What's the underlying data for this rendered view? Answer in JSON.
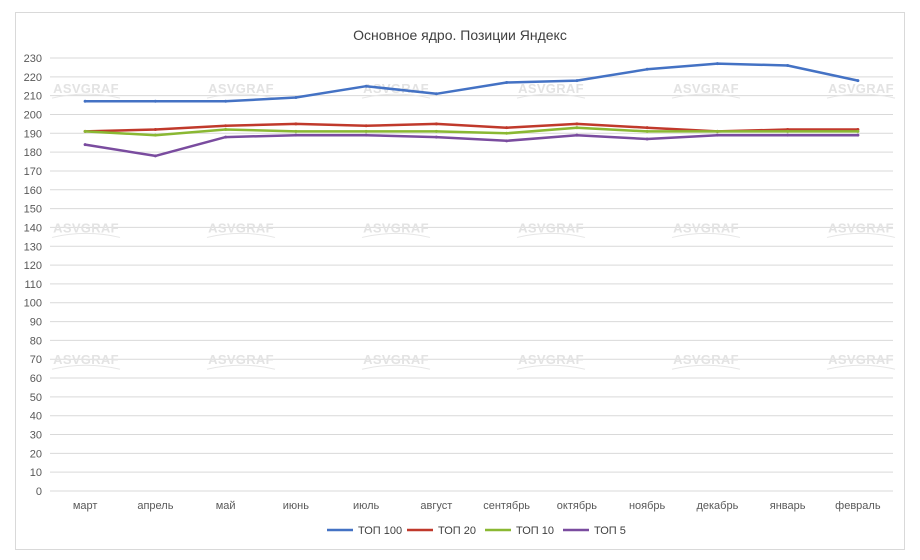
{
  "chart_data": {
    "type": "line",
    "title": "Основное ядро. Позиции Яндекс",
    "xlabel": "",
    "ylabel": "",
    "ylim": [
      0,
      230
    ],
    "y_step": 10,
    "grid": true,
    "legend_position": "bottom",
    "categories": [
      "март",
      "апрель",
      "май",
      "июнь",
      "июль",
      "август",
      "сентябрь",
      "октябрь",
      "ноябрь",
      "декабрь",
      "январь",
      "февраль"
    ],
    "series": [
      {
        "name": "ТОП 100",
        "color": "#4472c4",
        "values": [
          207,
          207,
          207,
          209,
          215,
          211,
          217,
          218,
          224,
          227,
          226,
          218
        ]
      },
      {
        "name": "ТОП 20",
        "color": "#c0392b",
        "values": [
          191,
          192,
          194,
          195,
          194,
          195,
          193,
          195,
          193,
          191,
          192,
          192
        ]
      },
      {
        "name": "ТОП 10",
        "color": "#8ab833",
        "values": [
          191,
          189,
          192,
          191,
          191,
          191,
          190,
          193,
          191,
          191,
          191,
          191
        ]
      },
      {
        "name": "ТОП 5",
        "color": "#7a4c9f",
        "values": [
          184,
          178,
          188,
          189,
          189,
          188,
          186,
          189,
          187,
          189,
          189,
          189
        ]
      }
    ],
    "watermark": "ASVGRAF"
  }
}
